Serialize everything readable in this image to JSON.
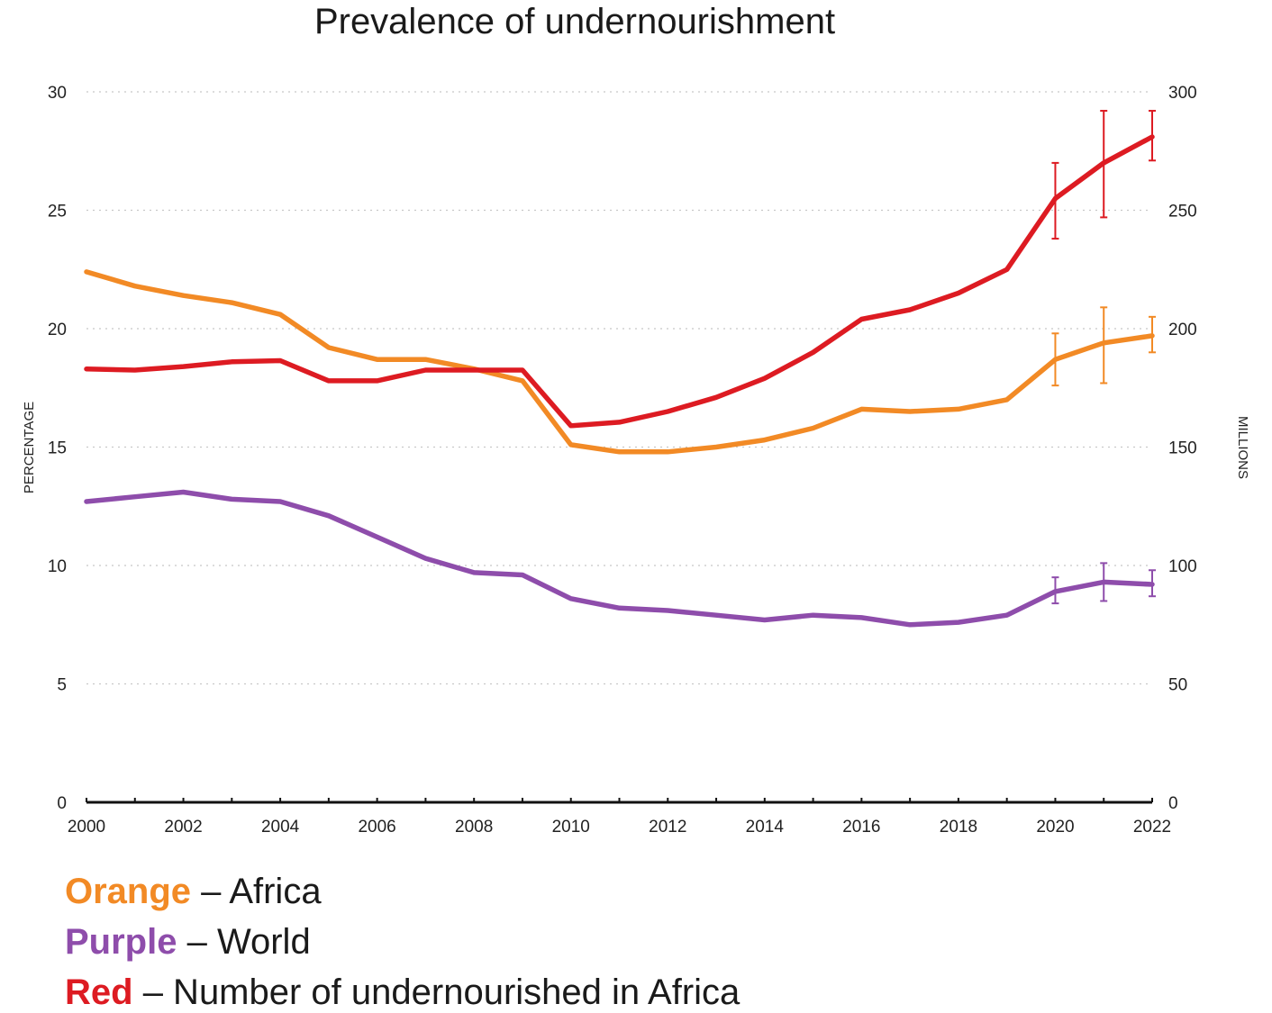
{
  "chart_data": {
    "type": "line",
    "title": "Prevalence of undernourishment",
    "ylabel_left": "PERCENTAGE",
    "ylabel_right": "MILLIONS",
    "x": [
      2000,
      2001,
      2002,
      2003,
      2004,
      2005,
      2006,
      2007,
      2008,
      2009,
      2010,
      2011,
      2012,
      2013,
      2014,
      2015,
      2016,
      2017,
      2018,
      2019,
      2020,
      2021,
      2022
    ],
    "x_ticks": [
      2000,
      2002,
      2004,
      2006,
      2008,
      2010,
      2012,
      2014,
      2016,
      2018,
      2020,
      2022
    ],
    "ylim_left": [
      0,
      30
    ],
    "y_ticks_left": [
      0,
      5,
      10,
      15,
      20,
      25,
      30
    ],
    "ylim_right": [
      0,
      300
    ],
    "y_ticks_right": [
      0,
      50,
      100,
      150,
      200,
      250,
      300
    ],
    "grid": "horizontal dotted",
    "series": [
      {
        "name": "Africa",
        "axis": "left",
        "color": "#f28a25",
        "values": [
          22.4,
          21.8,
          21.4,
          21.1,
          20.6,
          19.2,
          18.7,
          18.7,
          18.3,
          17.8,
          15.1,
          14.8,
          14.8,
          15.0,
          15.3,
          15.8,
          16.6,
          16.5,
          16.6,
          17.0,
          18.7,
          19.4,
          19.7
        ],
        "error_bars": [
          {
            "x": 2020,
            "low": 17.6,
            "high": 19.8
          },
          {
            "x": 2021,
            "low": 17.7,
            "high": 20.9
          },
          {
            "x": 2022,
            "low": 19.0,
            "high": 20.5
          }
        ]
      },
      {
        "name": "World",
        "axis": "left",
        "color": "#8e4dab",
        "values": [
          12.7,
          12.9,
          13.1,
          12.8,
          12.7,
          12.1,
          11.2,
          10.3,
          9.7,
          9.6,
          8.6,
          8.2,
          8.1,
          7.9,
          7.7,
          7.9,
          7.8,
          7.5,
          7.6,
          7.9,
          8.9,
          9.3,
          9.2
        ],
        "error_bars": [
          {
            "x": 2020,
            "low": 8.4,
            "high": 9.5
          },
          {
            "x": 2021,
            "low": 8.5,
            "high": 10.1
          },
          {
            "x": 2022,
            "low": 8.7,
            "high": 9.8
          }
        ]
      },
      {
        "name": "Number of undernourished in Africa",
        "axis": "right",
        "color": "#dd1b22",
        "values": [
          183,
          182.5,
          184,
          186,
          186.5,
          178,
          178,
          182.5,
          182.5,
          182.5,
          159,
          160.5,
          165,
          171,
          179,
          190,
          204,
          208,
          215,
          225,
          255,
          270,
          281
        ],
        "error_bars": [
          {
            "x": 2020,
            "low": 238,
            "high": 270
          },
          {
            "x": 2021,
            "low": 247,
            "high": 292
          },
          {
            "x": 2022,
            "low": 271,
            "high": 292
          }
        ]
      }
    ]
  },
  "legend": [
    {
      "word": "Orange",
      "text": " – Africa",
      "color": "#f28a25"
    },
    {
      "word": "Purple",
      "text": " – World",
      "color": "#8e4dab"
    },
    {
      "word": "Red",
      "text": " – Number of undernourished in Africa",
      "color": "#dd1b22"
    }
  ]
}
